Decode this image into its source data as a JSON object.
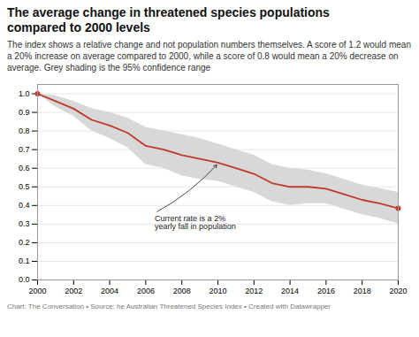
{
  "chart_data": {
    "type": "line",
    "title": "The average change in threatened species populations\ncompared to 2000 levels",
    "subtitle": "The index shows a relative change and not population numbers themselves. A score of 1.2 would mean a 20% increase on average compared to 2000, while a score of 0.8 would mean a 20% decrease on average. Grey shading is the 95% confidence range",
    "footer": "Chart: The Conversation • Source: he Australian Threatened Species Index • Created with Datawrapper",
    "x": [
      2000,
      2001,
      2002,
      2003,
      2004,
      2005,
      2006,
      2007,
      2008,
      2009,
      2010,
      2011,
      2012,
      2013,
      2014,
      2015,
      2016,
      2017,
      2018,
      2019,
      2020
    ],
    "values": [
      1.0,
      0.96,
      0.92,
      0.86,
      0.83,
      0.79,
      0.72,
      0.7,
      0.67,
      0.65,
      0.63,
      0.6,
      0.57,
      0.52,
      0.5,
      0.5,
      0.49,
      0.46,
      0.43,
      0.41,
      0.385
    ],
    "ci_upper": [
      1.0,
      0.99,
      0.96,
      0.92,
      0.9,
      0.87,
      0.82,
      0.8,
      0.78,
      0.76,
      0.73,
      0.7,
      0.67,
      0.62,
      0.6,
      0.59,
      0.57,
      0.54,
      0.51,
      0.49,
      0.47
    ],
    "ci_lower": [
      1.0,
      0.93,
      0.88,
      0.8,
      0.76,
      0.71,
      0.62,
      0.6,
      0.56,
      0.54,
      0.53,
      0.5,
      0.47,
      0.42,
      0.4,
      0.41,
      0.41,
      0.38,
      0.35,
      0.33,
      0.3
    ],
    "color": "#c0392b",
    "ci_color": "#d8d8d8",
    "annotations": [
      {
        "text": "Current rate is a 2%\nyearly fall in population",
        "x": 2006.5,
        "y": 0.36,
        "arrow_to": [
          2010,
          0.625
        ]
      }
    ],
    "xlim": [
      2000,
      2020
    ],
    "ylim": [
      0.0,
      1.05
    ],
    "xticks": [
      2000,
      2002,
      2004,
      2006,
      2008,
      2010,
      2012,
      2014,
      2016,
      2018,
      2020
    ],
    "yticks": [
      {
        "value": 0.0,
        "label": "0.0"
      },
      0.1,
      0.2,
      0.3,
      0.4,
      0.5,
      0.6,
      0.7,
      0.8,
      0.9,
      {
        "value": 1.0,
        "label": "1.0"
      }
    ],
    "grid": true
  }
}
